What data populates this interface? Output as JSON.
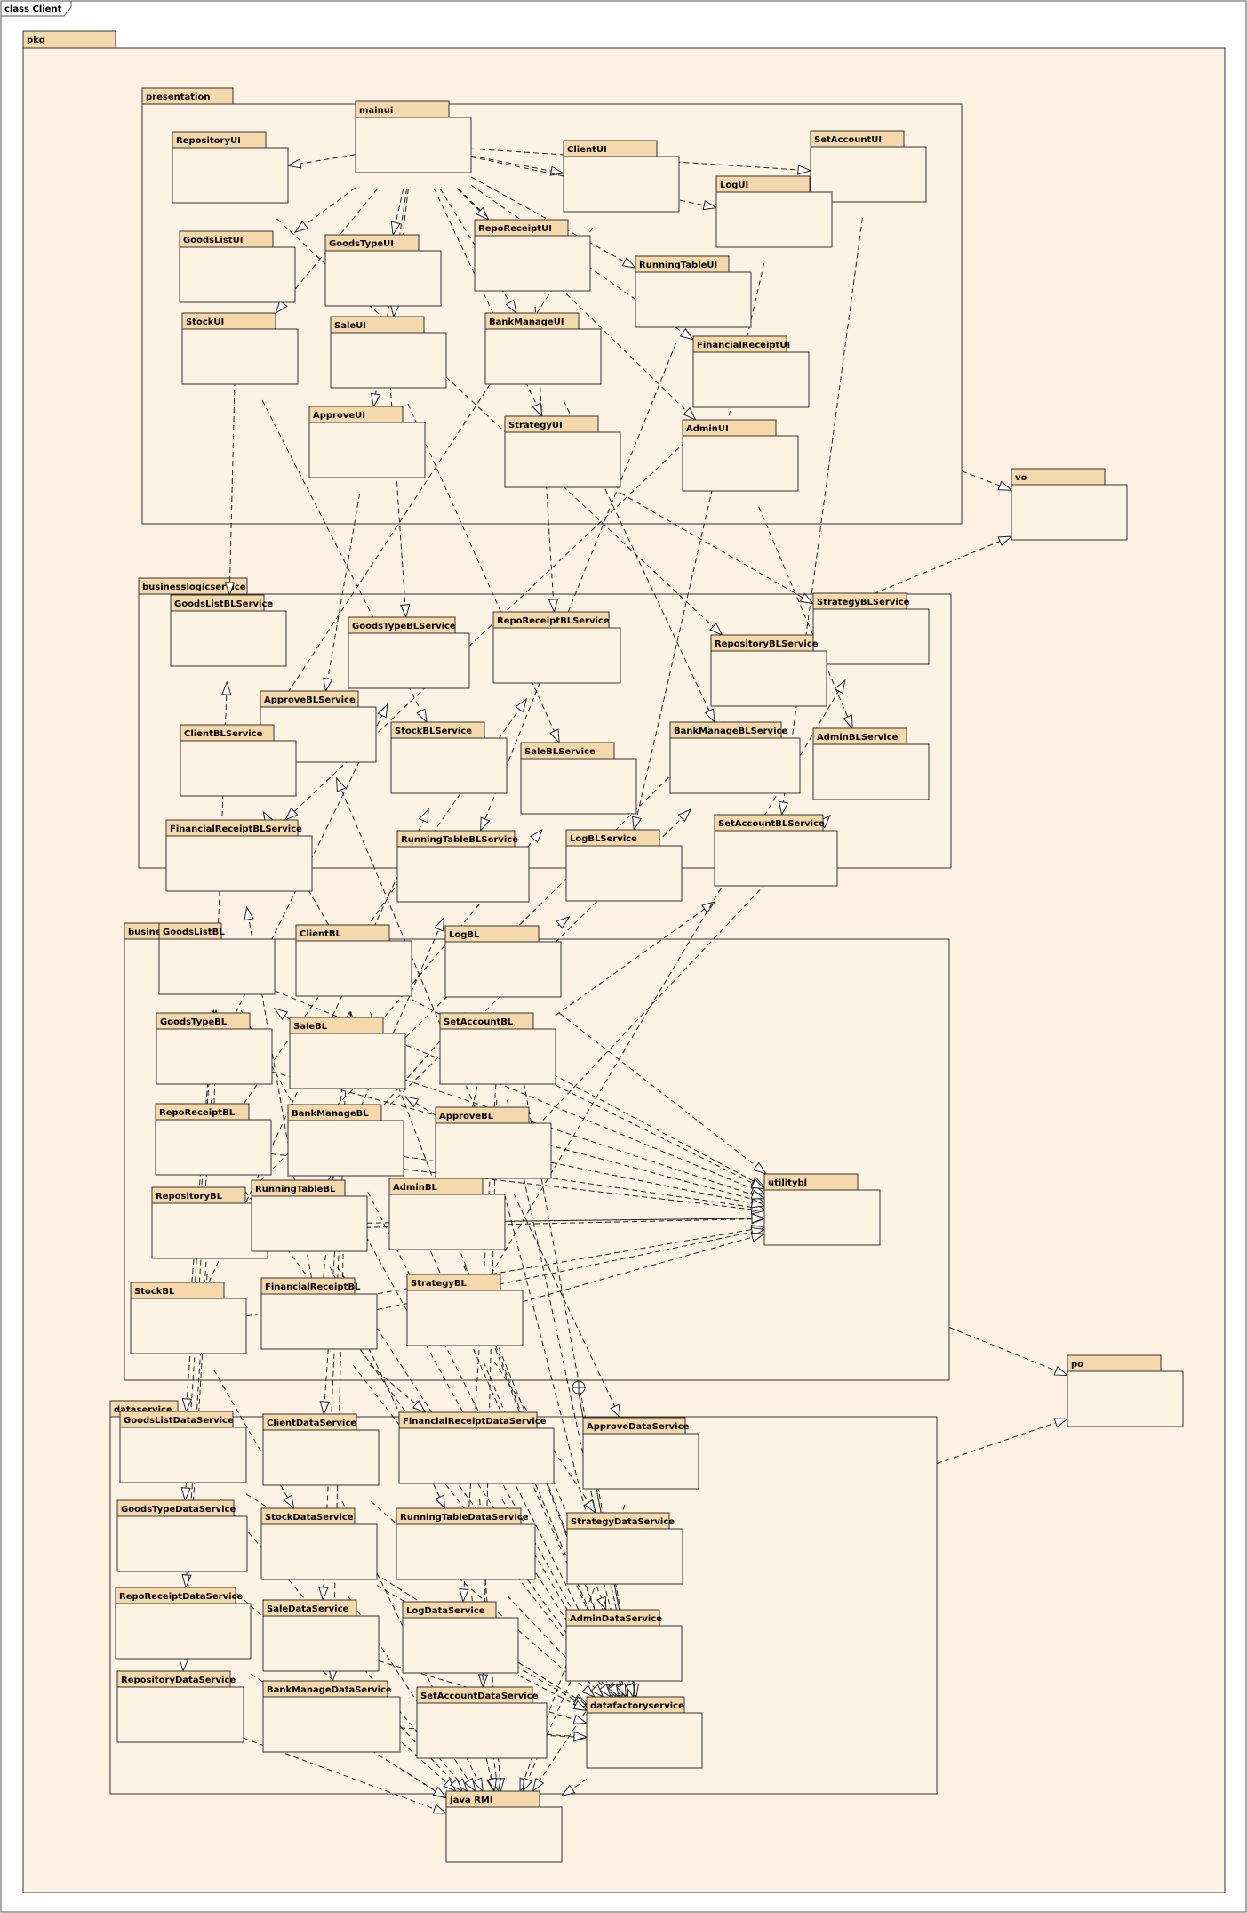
{
  "diagram_title": "class Client",
  "root_package": "pkg",
  "colors": {
    "frame_fill": "#fcf1e2",
    "tab_fill": "#f6d9ab",
    "box_fill": "#fdf3e5",
    "stroke": "#333333",
    "outer_fill": "#ffffff"
  },
  "groups": [
    {
      "id": "presentation",
      "label": "presentation"
    },
    {
      "id": "businesslogicservice",
      "label": "businesslogicservice"
    },
    {
      "id": "businesslogic",
      "label": "businesslogic"
    },
    {
      "id": "dataservice",
      "label": "dataservice"
    }
  ],
  "packages": [
    {
      "id": "mainui",
      "label": "mainui"
    },
    {
      "id": "RepositoryUI",
      "label": "RepositoryUI"
    },
    {
      "id": "ClientUI",
      "label": "ClientUI"
    },
    {
      "id": "SetAccountUI",
      "label": "SetAccountUI"
    },
    {
      "id": "LogUI",
      "label": "LogUI"
    },
    {
      "id": "GoodsListUI",
      "label": "GoodsListUI"
    },
    {
      "id": "GoodsTypeUI",
      "label": "GoodsTypeUI"
    },
    {
      "id": "RepoReceiptUI",
      "label": "RepoReceiptUI"
    },
    {
      "id": "RunningTableUI",
      "label": "RunningTableUI"
    },
    {
      "id": "StockUI",
      "label": "StockUI"
    },
    {
      "id": "SaleUI",
      "label": "SaleUI"
    },
    {
      "id": "BankManageUI",
      "label": "BankManageUI"
    },
    {
      "id": "FinancialReceiptUI",
      "label": "FinancialReceiptUI"
    },
    {
      "id": "ApproveUI",
      "label": "ApproveUI"
    },
    {
      "id": "StrategyUI",
      "label": "StrategyUI"
    },
    {
      "id": "AdminUI",
      "label": "AdminUI"
    },
    {
      "id": "vo",
      "label": "vo"
    },
    {
      "id": "GoodsListBLService",
      "label": "GoodsListBLService"
    },
    {
      "id": "GoodsTypeBLService",
      "label": "GoodsTypeBLService"
    },
    {
      "id": "RepoReceiptBLService",
      "label": "RepoReceiptBLService"
    },
    {
      "id": "StrategyBLService",
      "label": "StrategyBLService"
    },
    {
      "id": "RepositoryBLService",
      "label": "RepositoryBLService"
    },
    {
      "id": "ApproveBLService",
      "label": "ApproveBLService"
    },
    {
      "id": "ClientBLService",
      "label": "ClientBLService"
    },
    {
      "id": "StockBLService",
      "label": "StockBLService"
    },
    {
      "id": "SaleBLService",
      "label": "SaleBLService"
    },
    {
      "id": "BankManageBLService",
      "label": "BankManageBLService"
    },
    {
      "id": "AdminBLService",
      "label": "AdminBLService"
    },
    {
      "id": "FinancialReceiptBLService",
      "label": "FinancialReceiptBLService"
    },
    {
      "id": "RunningTableBLService",
      "label": "RunningTableBLService"
    },
    {
      "id": "LogBLService",
      "label": "LogBLService"
    },
    {
      "id": "SetAccountBLService",
      "label": "SetAccountBLService"
    },
    {
      "id": "GoodsListBL",
      "label": "GoodsListBL"
    },
    {
      "id": "ClientBL",
      "label": "ClientBL"
    },
    {
      "id": "LogBL",
      "label": "LogBL"
    },
    {
      "id": "GoodsTypeBL",
      "label": "GoodsTypeBL"
    },
    {
      "id": "SaleBL",
      "label": "SaleBL"
    },
    {
      "id": "SetAccountBL",
      "label": "SetAccountBL"
    },
    {
      "id": "RepoReceiptBL",
      "label": "RepoReceiptBL"
    },
    {
      "id": "BankManageBL",
      "label": "BankManageBL"
    },
    {
      "id": "ApproveBL",
      "label": "ApproveBL"
    },
    {
      "id": "RepositoryBL",
      "label": "RepositoryBL"
    },
    {
      "id": "RunningTableBL",
      "label": "RunningTableBL"
    },
    {
      "id": "AdminBL",
      "label": "AdminBL"
    },
    {
      "id": "utilitybl",
      "label": "utilitybl"
    },
    {
      "id": "StockBL",
      "label": "StockBL"
    },
    {
      "id": "FinancialReceiptBL",
      "label": "FinancialReceiptBL"
    },
    {
      "id": "StrategyBL",
      "label": "StrategyBL"
    },
    {
      "id": "po",
      "label": "po"
    },
    {
      "id": "GoodsListDataService",
      "label": "GoodsListDataService"
    },
    {
      "id": "ClientDataService",
      "label": "ClientDataService"
    },
    {
      "id": "FinancialReceiptDataService",
      "label": "FinancialReceiptDataService"
    },
    {
      "id": "ApproveDataService",
      "label": "ApproveDataService"
    },
    {
      "id": "GoodsTypeDataService",
      "label": "GoodsTypeDataService"
    },
    {
      "id": "StockDataService",
      "label": "StockDataService"
    },
    {
      "id": "RunningTableDataService",
      "label": "RunningTableDataService"
    },
    {
      "id": "StrategyDataService",
      "label": "StrategyDataService"
    },
    {
      "id": "RepoReceiptDataService",
      "label": "RepoReceiptDataService"
    },
    {
      "id": "SaleDataService",
      "label": "SaleDataService"
    },
    {
      "id": "LogDataService",
      "label": "LogDataService"
    },
    {
      "id": "AdminDataService",
      "label": "AdminDataService"
    },
    {
      "id": "RepositoryDataService",
      "label": "RepositoryDataService"
    },
    {
      "id": "BankManageDataService",
      "label": "BankManageDataService"
    },
    {
      "id": "SetAccountDataService",
      "label": "SetAccountDataService"
    },
    {
      "id": "datafactoryservice",
      "label": "datafactoryservice"
    },
    {
      "id": "JavaRMI",
      "label": "Java RMI"
    }
  ],
  "dependencies": [
    [
      "mainui",
      "RepositoryUI"
    ],
    [
      "mainui",
      "ClientUI"
    ],
    [
      "mainui",
      "SetAccountUI"
    ],
    [
      "mainui",
      "LogUI"
    ],
    [
      "mainui",
      "GoodsListUI"
    ],
    [
      "mainui",
      "GoodsTypeUI"
    ],
    [
      "mainui",
      "RepoReceiptUI"
    ],
    [
      "mainui",
      "RunningTableUI"
    ],
    [
      "mainui",
      "StockUI"
    ],
    [
      "mainui",
      "SaleUI"
    ],
    [
      "mainui",
      "BankManageUI"
    ],
    [
      "mainui",
      "FinancialReceiptUI"
    ],
    [
      "mainui",
      "ApproveUI"
    ],
    [
      "mainui",
      "StrategyUI"
    ],
    [
      "mainui",
      "AdminUI"
    ],
    [
      "presentation",
      "vo"
    ],
    [
      "businesslogicservice",
      "vo"
    ],
    [
      "GoodsListUI",
      "GoodsListBLService"
    ],
    [
      "GoodsTypeUI",
      "GoodsTypeBLService"
    ],
    [
      "RepoReceiptUI",
      "RepoReceiptBLService"
    ],
    [
      "RepositoryUI",
      "RepositoryBLService"
    ],
    [
      "StrategyUI",
      "StrategyBLService"
    ],
    [
      "ApproveUI",
      "ApproveBLService"
    ],
    [
      "ClientUI",
      "ClientBLService"
    ],
    [
      "StockUI",
      "StockBLService"
    ],
    [
      "SaleUI",
      "SaleBLService"
    ],
    [
      "BankManageUI",
      "BankManageBLService"
    ],
    [
      "AdminUI",
      "AdminBLService"
    ],
    [
      "FinancialReceiptUI",
      "FinancialReceiptBLService"
    ],
    [
      "RunningTableUI",
      "RunningTableBLService"
    ],
    [
      "LogUI",
      "LogBLService"
    ],
    [
      "SetAccountUI",
      "SetAccountBLService"
    ],
    [
      "GoodsListBL",
      "GoodsListBLService"
    ],
    [
      "ClientBL",
      "ClientBLService"
    ],
    [
      "LogBL",
      "LogBLService"
    ],
    [
      "GoodsTypeBL",
      "GoodsTypeBLService"
    ],
    [
      "SaleBL",
      "SaleBLService"
    ],
    [
      "SetAccountBL",
      "SetAccountBLService"
    ],
    [
      "RepoReceiptBL",
      "RepoReceiptBLService"
    ],
    [
      "BankManageBL",
      "BankManageBLService"
    ],
    [
      "ApproveBL",
      "ApproveBLService"
    ],
    [
      "RepositoryBL",
      "RepositoryBLService"
    ],
    [
      "RunningTableBL",
      "RunningTableBLService"
    ],
    [
      "AdminBL",
      "AdminBLService"
    ],
    [
      "StockBL",
      "StockBLService"
    ],
    [
      "FinancialReceiptBL",
      "FinancialReceiptBLService"
    ],
    [
      "StrategyBL",
      "StrategyBLService"
    ],
    [
      "GoodsListBL",
      "utilitybl"
    ],
    [
      "ClientBL",
      "utilitybl"
    ],
    [
      "LogBL",
      "utilitybl"
    ],
    [
      "GoodsTypeBL",
      "utilitybl"
    ],
    [
      "SaleBL",
      "utilitybl"
    ],
    [
      "SetAccountBL",
      "utilitybl"
    ],
    [
      "RepoReceiptBL",
      "utilitybl"
    ],
    [
      "BankManageBL",
      "utilitybl"
    ],
    [
      "ApproveBL",
      "utilitybl"
    ],
    [
      "RepositoryBL",
      "utilitybl"
    ],
    [
      "RunningTableBL",
      "utilitybl"
    ],
    [
      "AdminBL",
      "utilitybl"
    ],
    [
      "StockBL",
      "utilitybl"
    ],
    [
      "FinancialReceiptBL",
      "utilitybl"
    ],
    [
      "StrategyBL",
      "utilitybl"
    ],
    [
      "SaleBL",
      "GoodsListBL"
    ],
    [
      "SaleBL",
      "ClientBL"
    ],
    [
      "RepoReceiptBL",
      "GoodsListBL"
    ],
    [
      "FinancialReceiptBL",
      "ClientBL"
    ],
    [
      "ApproveBL",
      "SaleBL"
    ],
    [
      "StockBL",
      "GoodsListBL"
    ],
    [
      "BankManageBL",
      "LogBL"
    ],
    [
      "AdminBL",
      "LogBL"
    ],
    [
      "GoodsListBL",
      "GoodsListDataService"
    ],
    [
      "ClientBL",
      "ClientDataService"
    ],
    [
      "FinancialReceiptBL",
      "FinancialReceiptDataService"
    ],
    [
      "ApproveBL",
      "ApproveDataService"
    ],
    [
      "GoodsTypeBL",
      "GoodsTypeDataService"
    ],
    [
      "StockBL",
      "StockDataService"
    ],
    [
      "RunningTableBL",
      "RunningTableDataService"
    ],
    [
      "StrategyBL",
      "StrategyDataService"
    ],
    [
      "RepoReceiptBL",
      "RepoReceiptDataService"
    ],
    [
      "SaleBL",
      "SaleDataService"
    ],
    [
      "LogBL",
      "LogDataService"
    ],
    [
      "AdminBL",
      "AdminDataService"
    ],
    [
      "RepositoryBL",
      "RepositoryDataService"
    ],
    [
      "BankManageBL",
      "BankManageDataService"
    ],
    [
      "SetAccountBL",
      "SetAccountDataService"
    ],
    [
      "GoodsListBL",
      "datafactoryservice"
    ],
    [
      "ClientBL",
      "datafactoryservice"
    ],
    [
      "SaleBL",
      "datafactoryservice"
    ],
    [
      "RepoReceiptBL",
      "datafactoryservice"
    ],
    [
      "BankManageBL",
      "datafactoryservice"
    ],
    [
      "RunningTableBL",
      "datafactoryservice"
    ],
    [
      "AdminBL",
      "datafactoryservice"
    ],
    [
      "StrategyBL",
      "datafactoryservice"
    ],
    [
      "FinancialReceiptBL",
      "datafactoryservice"
    ],
    [
      "SetAccountBL",
      "datafactoryservice"
    ],
    [
      "LogBL",
      "datafactoryservice"
    ],
    [
      "ApproveBL",
      "datafactoryservice"
    ],
    [
      "businesslogic",
      "po"
    ],
    [
      "dataservice",
      "po"
    ],
    [
      "GoodsListDataService",
      "JavaRMI"
    ],
    [
      "ClientDataService",
      "JavaRMI"
    ],
    [
      "FinancialReceiptDataService",
      "JavaRMI"
    ],
    [
      "ApproveDataService",
      "JavaRMI"
    ],
    [
      "GoodsTypeDataService",
      "JavaRMI"
    ],
    [
      "StockDataService",
      "JavaRMI"
    ],
    [
      "RunningTableDataService",
      "JavaRMI"
    ],
    [
      "StrategyDataService",
      "JavaRMI"
    ],
    [
      "RepoReceiptDataService",
      "JavaRMI"
    ],
    [
      "SaleDataService",
      "JavaRMI"
    ],
    [
      "LogDataService",
      "JavaRMI"
    ],
    [
      "AdminDataService",
      "JavaRMI"
    ],
    [
      "RepositoryDataService",
      "JavaRMI"
    ],
    [
      "BankManageDataService",
      "JavaRMI"
    ],
    [
      "SetAccountDataService",
      "JavaRMI"
    ],
    [
      "datafactoryservice",
      "JavaRMI"
    ],
    [
      "GoodsListDataService",
      "datafactoryservice"
    ],
    [
      "ClientDataService",
      "datafactoryservice"
    ],
    [
      "FinancialReceiptDataService",
      "datafactoryservice"
    ],
    [
      "StockDataService",
      "datafactoryservice"
    ],
    [
      "RunningTableDataService",
      "datafactoryservice"
    ],
    [
      "SaleDataService",
      "datafactoryservice"
    ],
    [
      "LogDataService",
      "datafactoryservice"
    ],
    [
      "BankManageDataService",
      "datafactoryservice"
    ],
    [
      "SetAccountDataService",
      "datafactoryservice"
    ]
  ]
}
